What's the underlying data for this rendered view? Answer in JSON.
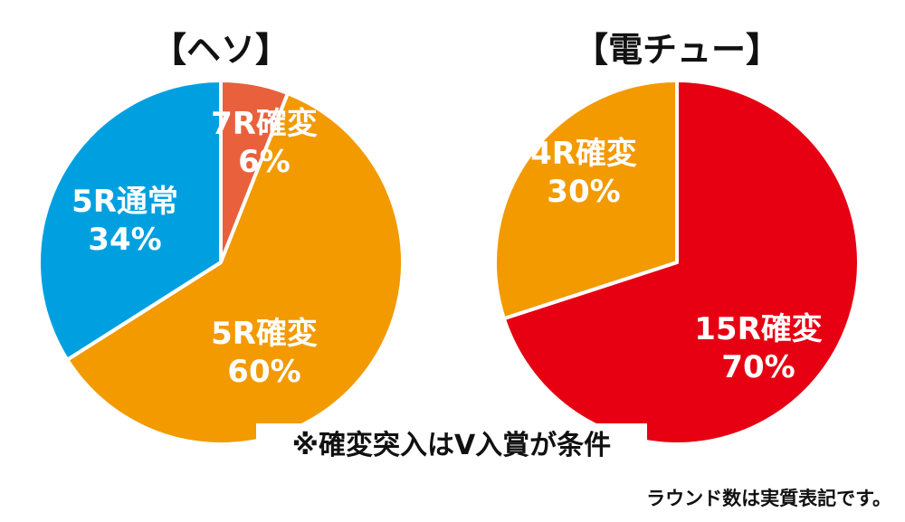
{
  "chart_data": [
    {
      "type": "pie",
      "title": "【ヘソ】",
      "slices": [
        {
          "label": "7R確変",
          "value": 6,
          "value_label": "6%",
          "color": "#e8613c"
        },
        {
          "label": "5R確変",
          "value": 60,
          "value_label": "60%",
          "color": "#f29a00"
        },
        {
          "label": "5R通常",
          "value": 34,
          "value_label": "34%",
          "color": "#00a0e0"
        }
      ]
    },
    {
      "type": "pie",
      "title": "【電チュー】",
      "slices": [
        {
          "label": "15R確変",
          "value": 70,
          "value_label": "70%",
          "color": "#e60012"
        },
        {
          "label": "4R確変",
          "value": 30,
          "value_label": "30%",
          "color": "#f29a00"
        }
      ]
    }
  ],
  "note": "※確変突入はV入賞が条件",
  "footnote": "ラウンド数は実質表記です。"
}
